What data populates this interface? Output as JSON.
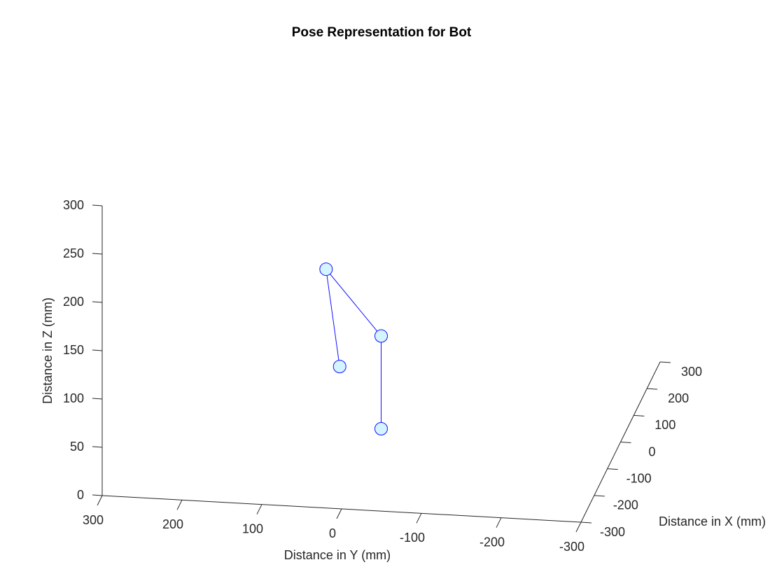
{
  "chart_data": {
    "type": "line3d",
    "title": "Pose Representation for Bot",
    "xlabel": "Distance in X (mm)",
    "ylabel": "Distance in Y (mm)",
    "zlabel": "Distance in Z (mm)",
    "x": [
      0,
      0,
      0,
      0
    ],
    "y": [
      0,
      0,
      69,
      52
    ],
    "z": [
      0,
      96,
      162,
      62
    ],
    "color": "#1010ff",
    "marker_color": "#d4f4ff",
    "xlim": [
      -300,
      300
    ],
    "xticks": [
      -300,
      -200,
      -100,
      0,
      100,
      200,
      300
    ],
    "ylim": [
      -300,
      300
    ],
    "yticks": [
      -300,
      -200,
      -100,
      0,
      100,
      200,
      300
    ],
    "zlim": [
      0,
      300
    ],
    "zticks": [
      0,
      50,
      100,
      150,
      200,
      250,
      300
    ],
    "grid": false
  }
}
